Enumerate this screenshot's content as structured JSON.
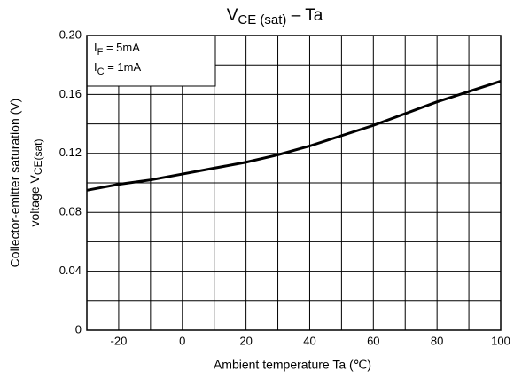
{
  "chart_data": {
    "type": "line",
    "title": {
      "main": "V",
      "sub": "CE (sat)",
      "rest": " – Ta"
    },
    "xlabel": "Ambient   temperature   Ta   (℃)",
    "ylabel": {
      "line1": "Collector-emitter  saturation  (V)",
      "line2_main": "voltage  V",
      "line2_sub": "CE(sat)"
    },
    "annotations": [
      {
        "main": "I",
        "sub": "F",
        "rest": " = 5mA"
      },
      {
        "main": "I",
        "sub": "C",
        "rest": " = 1mA"
      }
    ],
    "x": [
      -30,
      -20,
      -10,
      0,
      10,
      20,
      30,
      40,
      50,
      60,
      70,
      80,
      90,
      100
    ],
    "values": [
      0.095,
      0.099,
      0.102,
      0.106,
      0.11,
      0.114,
      0.119,
      0.125,
      0.132,
      0.139,
      0.147,
      0.155,
      0.162,
      0.169
    ],
    "color": "#000000",
    "xlim": [
      -30,
      100
    ],
    "ylim": [
      0,
      0.2
    ],
    "xticks": [
      -20,
      0,
      20,
      40,
      60,
      80,
      100
    ],
    "yticks": [
      0,
      0.04,
      0.08,
      0.12,
      0.16,
      {
        "value": 0.2,
        "label": "0.20"
      }
    ],
    "xminor": [
      -30,
      -10,
      10,
      30,
      50,
      70,
      90
    ],
    "yminor": [
      0.02,
      0.06,
      0.1,
      0.14,
      0.18
    ],
    "grid": true
  }
}
